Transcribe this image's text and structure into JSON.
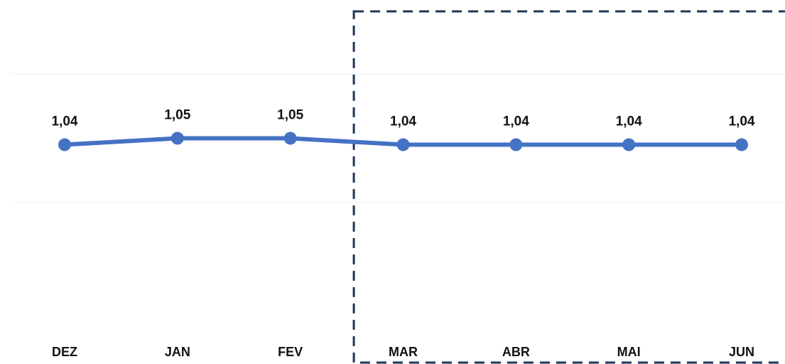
{
  "chart_data": {
    "type": "line",
    "categories": [
      "DEZ",
      "JAN",
      "FEV",
      "MAR",
      "ABR",
      "MAI",
      "JUN"
    ],
    "series": [
      {
        "values": [
          1.04,
          1.05,
          1.05,
          1.04,
          1.04,
          1.04,
          1.04
        ],
        "data_labels": [
          "1,04",
          "1,05",
          "1,05",
          "1,04",
          "1,04",
          "1,04",
          "1,04"
        ],
        "color": "#4472c4"
      }
    ],
    "highlight": {
      "categories": [
        "MAR",
        "ABR",
        "MAI",
        "JUN"
      ],
      "style": "dashed-box",
      "color": "#1f3657"
    },
    "ylim": [
      0.95,
      1.15
    ],
    "grid": true,
    "legend": "none",
    "title": "",
    "xlabel": "",
    "ylabel": ""
  }
}
